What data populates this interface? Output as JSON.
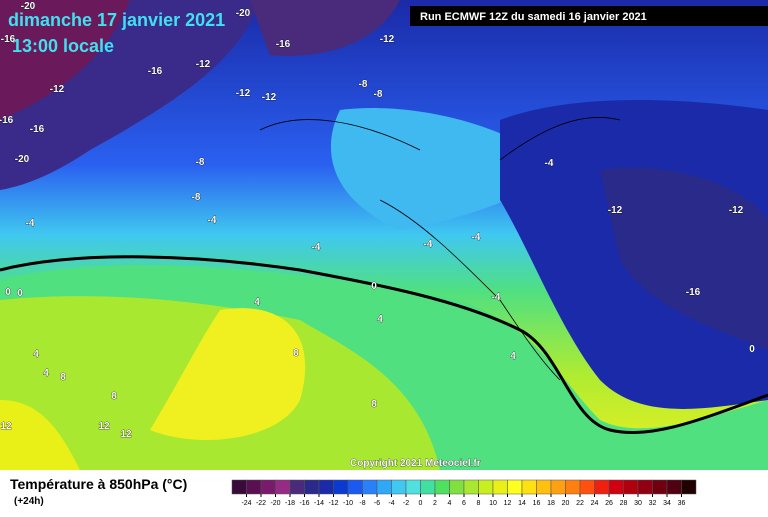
{
  "header": {
    "title": "dimanche 17 janvier 2021",
    "time": "13:00 locale",
    "run": "Run ECMWF 12Z du samedi 16 janvier 2021"
  },
  "copyright": "Copyright 2021 Meteociel.fr",
  "contour_labels": [
    "-20",
    "-20",
    "-16",
    "-16",
    "-12",
    "-16",
    "-12",
    "-12",
    "-12",
    "-12",
    "-8",
    "-8",
    "-16",
    "-16",
    "-20",
    "-8",
    "-8",
    "-4",
    "-12",
    "-12",
    "-4",
    "-4",
    "-4",
    "-4",
    "-4",
    "-16",
    "-4",
    "0",
    "0",
    "0",
    "4",
    "4",
    "0",
    "4",
    "8",
    "4",
    "4",
    "8",
    "8",
    "12",
    "12",
    "12",
    "8"
  ],
  "legend": {
    "title": "Température à 850hPa (°C)",
    "subtitle": "(+24h)",
    "ticks": [
      -24,
      -22,
      -20,
      -18,
      -16,
      -14,
      -12,
      -10,
      -8,
      -6,
      -4,
      -2,
      0,
      2,
      4,
      6,
      8,
      10,
      12,
      14,
      16,
      18,
      20,
      22,
      24,
      26,
      28,
      30,
      32,
      34,
      36
    ],
    "colors": [
      "#3a0a3a",
      "#5a1050",
      "#7a1a6a",
      "#962b86",
      "#4a2a7a",
      "#2a2a8a",
      "#1a2aa8",
      "#0a3ad0",
      "#1a5af0",
      "#2a80f8",
      "#30a8f8",
      "#40c8f0",
      "#50e0e0",
      "#40e0a0",
      "#50e060",
      "#80e040",
      "#a8e830",
      "#c8f020",
      "#e8f018",
      "#ffff20",
      "#ffe010",
      "#ffc010",
      "#ffa010",
      "#ff8010",
      "#ff5010",
      "#f02010",
      "#d00010",
      "#b00010",
      "#900010",
      "#700010",
      "#500010",
      "#200000"
    ]
  }
}
